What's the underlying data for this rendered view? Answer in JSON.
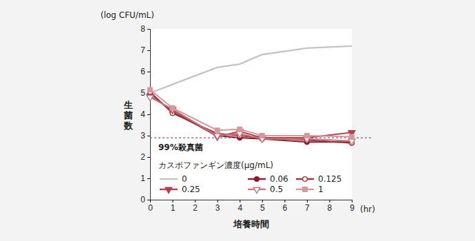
{
  "chart_data": {
    "type": "line",
    "xlabel": "培養時間",
    "xunit": "(hr)",
    "ylabel": "生菌数",
    "yunit": "(log CFU/mL)",
    "legend_title": "カスポファンギン濃度(μg/mL)",
    "annotations": [
      {
        "text": "99%殺真菌",
        "y": 2.9,
        "color": "#8b2a3a",
        "line_style": "dashed"
      }
    ],
    "x": [
      0,
      1,
      3,
      4,
      5,
      7,
      9
    ],
    "xlim": [
      0,
      9
    ],
    "xticks": [
      0,
      1,
      2,
      3,
      4,
      5,
      6,
      7,
      8,
      9
    ],
    "ylim": [
      0,
      8
    ],
    "yticks": [
      0,
      1,
      2,
      3,
      4,
      5,
      6,
      7,
      8
    ],
    "grid": false,
    "series": [
      {
        "name": "0",
        "color": "#c4c4c4",
        "marker": "none",
        "values": [
          5.0,
          5.4,
          6.2,
          6.35,
          6.8,
          7.1,
          7.2
        ]
      },
      {
        "name": "0.06",
        "color": "#8b1a2a",
        "marker": "circle",
        "values": [
          5.0,
          4.1,
          3.0,
          2.9,
          2.85,
          2.7,
          2.7
        ]
      },
      {
        "name": "0.125",
        "color": "#a0303c",
        "marker": "circle-open",
        "values": [
          5.05,
          4.05,
          3.1,
          3.0,
          2.9,
          2.8,
          2.65
        ]
      },
      {
        "name": "0.25",
        "color": "#b04050",
        "marker": "triangle-down",
        "values": [
          4.85,
          4.2,
          2.95,
          3.2,
          2.9,
          2.9,
          3.15
        ]
      },
      {
        "name": "0.5",
        "color": "#c07a80",
        "marker": "triangle-down-open",
        "values": [
          4.8,
          4.25,
          3.0,
          3.1,
          2.85,
          2.85,
          2.75
        ]
      },
      {
        "name": "1",
        "color": "#d4999c",
        "marker": "square",
        "values": [
          5.15,
          4.3,
          3.25,
          3.3,
          3.0,
          3.0,
          2.95
        ]
      }
    ]
  }
}
